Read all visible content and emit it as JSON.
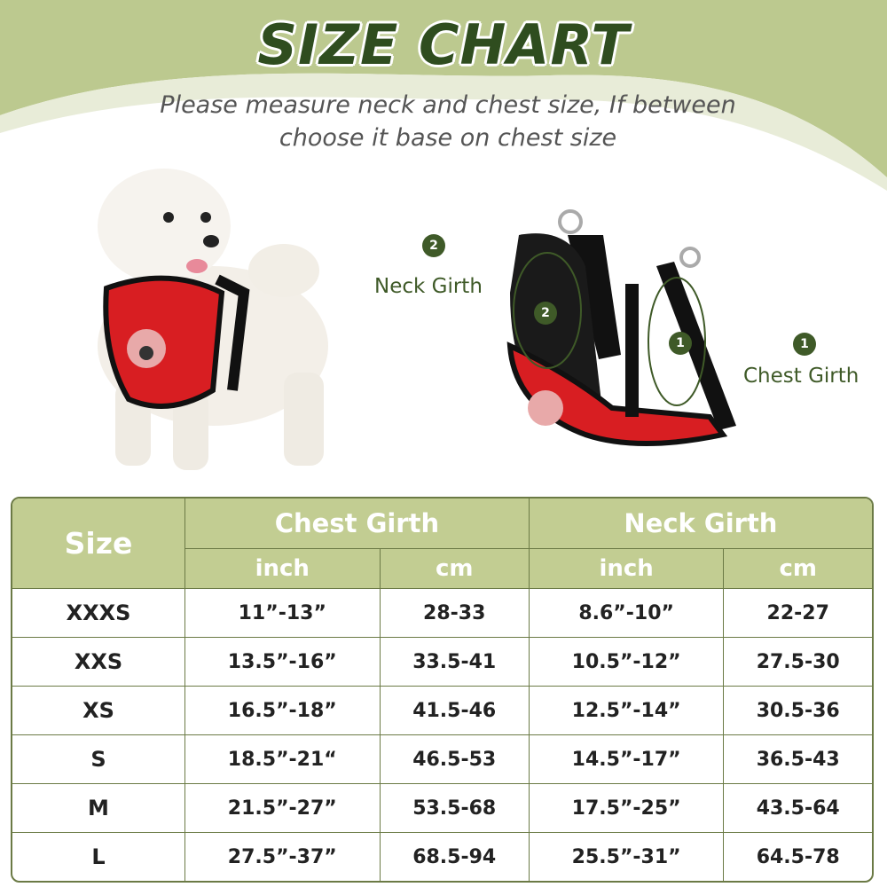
{
  "title": "SIZE CHART",
  "subtitle": [
    "Please measure neck and chest size, If between",
    "choose it base on chest size"
  ],
  "diagram": {
    "neck": {
      "number": "2",
      "label": "Neck Girth"
    },
    "chest": {
      "number": "1",
      "label": "Chest Girth"
    }
  },
  "colors": {
    "header": "#c2cd92",
    "title": "#2f4d1f",
    "band": "#bcc98f",
    "harness": "#d81e22"
  },
  "table": {
    "size_header": "Size",
    "groups": [
      "Chest Girth",
      "Neck Girth"
    ],
    "units": [
      "inch",
      "cm",
      "inch",
      "cm"
    ],
    "rows": [
      [
        "XXXS",
        "11”-13”",
        "28-33",
        "8.6”-10”",
        "22-27"
      ],
      [
        "XXS",
        "13.5”-16”",
        "33.5-41",
        "10.5”-12”",
        "27.5-30"
      ],
      [
        "XS",
        "16.5”-18”",
        "41.5-46",
        "12.5”-14”",
        "30.5-36"
      ],
      [
        "S",
        "18.5”-21“",
        "46.5-53",
        "14.5”-17”",
        "36.5-43"
      ],
      [
        "M",
        "21.5”-27”",
        "53.5-68",
        "17.5”-25”",
        "43.5-64"
      ],
      [
        "L",
        "27.5”-37”",
        "68.5-94",
        "25.5”-31”",
        "64.5-78"
      ]
    ]
  }
}
